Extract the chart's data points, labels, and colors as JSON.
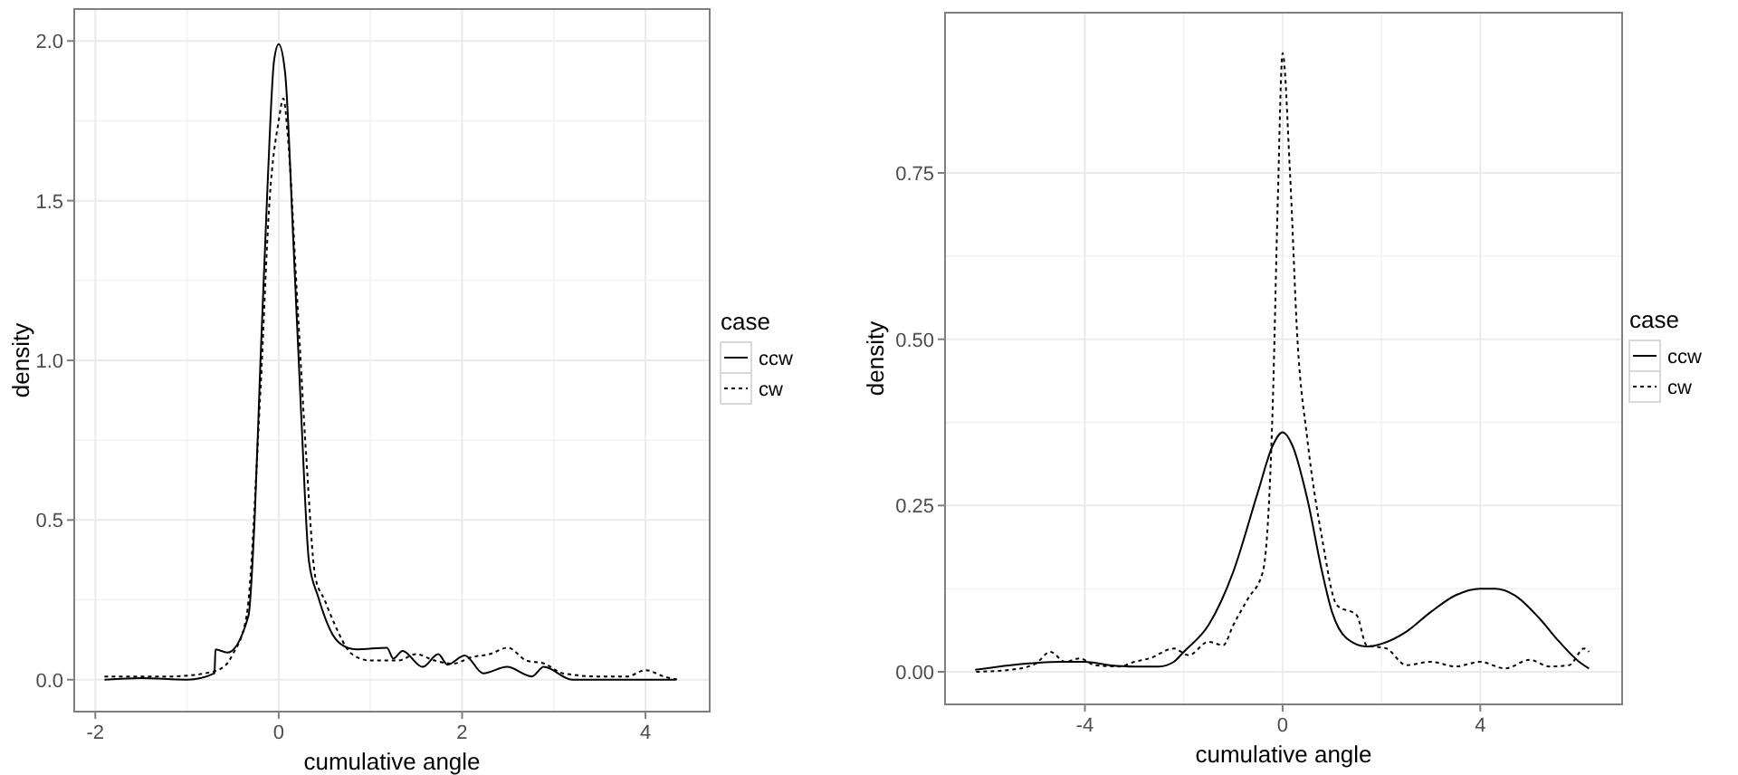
{
  "chart_data": [
    {
      "type": "line",
      "xlabel": "cumulative angle",
      "ylabel": "density",
      "legend_title": "case",
      "legend": "right",
      "grid": true,
      "xlim": [
        -2.23,
        4.7
      ],
      "ylim": [
        -0.1,
        2.1
      ],
      "xticks": [
        -2,
        0,
        2,
        4
      ],
      "yticks": [
        {
          "value": 0,
          "label": "0.0"
        },
        {
          "value": 0.5,
          "label": "0.5"
        },
        {
          "value": 1,
          "label": "1.0"
        },
        {
          "value": 1.5,
          "label": "1.5"
        },
        {
          "value": 2,
          "label": "2.0"
        }
      ],
      "series": [
        {
          "name": "ccw",
          "color": "#000000",
          "line_style": "solid",
          "x": [
            -1.9,
            -1.5,
            -1,
            -0.7,
            -0.69,
            -0.56,
            -0.33,
            -0.26,
            -0.2,
            -0.12,
            -0.05,
            0,
            0.07,
            0.16,
            0.25,
            0.33,
            0.43,
            0.59,
            0.75,
            0.85,
            1.18,
            1.25,
            1.35,
            1.57,
            1.74,
            1.84,
            2.03,
            2.23,
            2.49,
            2.76,
            2.89,
            3.2,
            4.33
          ],
          "values": [
            0,
            0.005,
            0,
            0.02,
            0.095,
            0.085,
            0.2,
            0.52,
            0.99,
            1.56,
            1.94,
            1.99,
            1.9,
            1.37,
            0.8,
            0.37,
            0.26,
            0.14,
            0.1,
            0.095,
            0.1,
            0.066,
            0.09,
            0.04,
            0.08,
            0.047,
            0.076,
            0.02,
            0.04,
            0.01,
            0.04,
            0,
            0
          ]
        },
        {
          "name": "cw",
          "color": "#000000",
          "line_style": "dotted",
          "x": [
            -1.9,
            -1.6,
            -1.2,
            -0.8,
            -0.6,
            -0.5,
            -0.35,
            -0.2,
            -0.1,
            0,
            0.05,
            0.1,
            0.2,
            0.3,
            0.4,
            0.5,
            0.6,
            0.8,
            1,
            1.3,
            1.5,
            1.7,
            1.9,
            2.1,
            2.3,
            2.5,
            2.7,
            2.9,
            3.1,
            3.5,
            3.8,
            4,
            4.2,
            4.35
          ],
          "values": [
            0.01,
            0.01,
            0.01,
            0.02,
            0.04,
            0.08,
            0.2,
            0.9,
            1.5,
            1.75,
            1.82,
            1.7,
            1.2,
            0.7,
            0.32,
            0.25,
            0.18,
            0.08,
            0.06,
            0.06,
            0.08,
            0.06,
            0.05,
            0.07,
            0.08,
            0.1,
            0.06,
            0.05,
            0.02,
            0.01,
            0.01,
            0.03,
            0.01,
            0
          ]
        }
      ]
    },
    {
      "type": "line",
      "xlabel": "cumulative angle",
      "ylabel": "density",
      "legend_title": "case",
      "legend": "right",
      "grid": true,
      "xlim": [
        -6.83,
        6.87
      ],
      "ylim": [
        -0.049,
        0.991
      ],
      "xticks": [
        -4,
        0,
        4
      ],
      "yticks": [
        {
          "value": 0,
          "label": "0.00"
        },
        {
          "value": 0.25,
          "label": "0.25"
        },
        {
          "value": 0.5,
          "label": "0.50"
        },
        {
          "value": 0.75,
          "label": "0.75"
        }
      ],
      "series": [
        {
          "name": "ccw",
          "color": "#000000",
          "line_style": "solid",
          "x": [
            -6.22,
            -5.5,
            -4.5,
            -4,
            -3.5,
            -3,
            -2.5,
            -2.2,
            -2,
            -1.5,
            -1,
            -0.5,
            -0.2,
            0,
            0.2,
            0.5,
            0.8,
            1,
            1.3,
            1.7,
            2,
            2.5,
            3,
            3.5,
            4,
            4.3,
            4.7,
            5.2,
            5.6,
            6,
            6.2
          ],
          "values": [
            0.003,
            0.01,
            0.015,
            0.015,
            0.01,
            0.008,
            0.008,
            0.015,
            0.03,
            0.07,
            0.15,
            0.27,
            0.34,
            0.36,
            0.34,
            0.26,
            0.15,
            0.09,
            0.05,
            0.038,
            0.042,
            0.06,
            0.09,
            0.115,
            0.125,
            0.125,
            0.115,
            0.08,
            0.045,
            0.015,
            0.005
          ]
        },
        {
          "name": "cw",
          "color": "#000000",
          "line_style": "dotted",
          "x": [
            -6.2,
            -5.5,
            -5,
            -4.7,
            -4.4,
            -4.1,
            -3.8,
            -3.3,
            -3,
            -2.7,
            -2.2,
            -1.9,
            -1.5,
            -1.2,
            -1,
            -0.7,
            -0.4,
            -0.2,
            -0.1,
            0,
            0.15,
            0.3,
            0.5,
            0.8,
            1.1,
            1.5,
            1.7,
            2.1,
            2.5,
            3,
            3.5,
            4,
            4.5,
            5,
            5.4,
            5.8,
            6.1,
            6.2
          ],
          "values": [
            0,
            0.003,
            0.012,
            0.03,
            0.015,
            0.02,
            0.01,
            0.008,
            0.015,
            0.02,
            0.035,
            0.025,
            0.045,
            0.04,
            0.07,
            0.11,
            0.15,
            0.4,
            0.7,
            0.93,
            0.75,
            0.5,
            0.35,
            0.2,
            0.1,
            0.085,
            0.04,
            0.035,
            0.01,
            0.015,
            0.008,
            0.015,
            0.005,
            0.018,
            0.008,
            0.01,
            0.035,
            0.03
          ]
        }
      ]
    }
  ]
}
